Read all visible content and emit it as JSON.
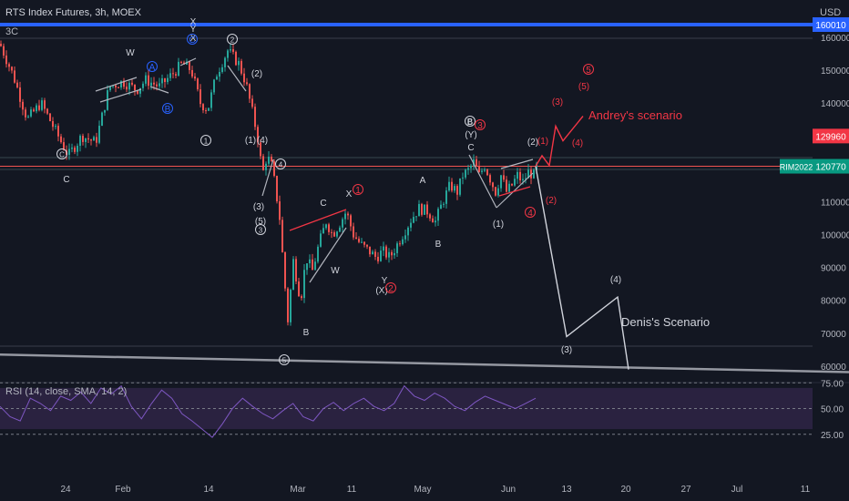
{
  "header": {
    "symbol_title": "RTS Index Futures, 3h, MOEX",
    "chart_label": "3C",
    "currency": "USD",
    "rsi_label": "RSI (14, close, SMA, 14, 2)"
  },
  "price_axis": {
    "ticks": [
      "160000",
      "150000",
      "140000",
      "130000",
      "120000",
      "110000",
      "100000",
      "90000",
      "80000",
      "70000",
      "60000"
    ],
    "top_tag": "160010",
    "tag_hi": "129960",
    "tag_cur": "120770",
    "tag_symbol": "RIM2022"
  },
  "time_axis": {
    "ticks": [
      "24",
      "Feb",
      "14",
      "Mar",
      "11",
      "May",
      "Jun",
      "13",
      "20",
      "27",
      "Jul",
      "11"
    ]
  },
  "rsi_axis": {
    "ticks": [
      "75.00",
      "50.00",
      "25.00"
    ]
  },
  "scenarios": {
    "andrey": "Andrey's scenario",
    "denis": "Denis's Scenario"
  },
  "waves_white": [
    "W",
    "X",
    "X",
    "Y",
    "C",
    "(2)",
    "(1)",
    "(4)",
    "(3)",
    "(5)",
    "B",
    "W",
    "C",
    "X",
    "(X)",
    "Y",
    "A",
    "B",
    "B",
    "(Y)",
    "C",
    "(2)",
    "(1)",
    "(3)",
    "(4)"
  ],
  "waves_blue": [
    "A",
    "B",
    "C"
  ],
  "waves_red": [
    "1",
    "2",
    "3",
    "(1)",
    "(2)",
    "(3)",
    "(4)",
    "(5)",
    "4",
    "5"
  ],
  "circled_white": [
    "C",
    "1",
    "2",
    "3",
    "4",
    "5",
    "B"
  ],
  "colors": {
    "background": "#131722",
    "up": "#26a69a",
    "down": "#ef5350",
    "rsi_line": "#7e57c2",
    "rsi_band": "#2a2240",
    "accent_blue": "#2962ff",
    "wave_red": "#f23645",
    "projection": "#d1d4dc",
    "current_tag": "#089981",
    "hi_tag": "#f23645"
  },
  "chart_data": {
    "type": "candlestick",
    "title": "RTS Index Futures, 3h, MOEX",
    "y_unit": "USD",
    "y_range": [
      55000,
      168000
    ],
    "current_price": 120770,
    "price_line_hi": 129960,
    "top_level": 160010,
    "price_path": [
      [
        0,
        158000
      ],
      [
        15,
        148000
      ],
      [
        30,
        135000
      ],
      [
        45,
        140000
      ],
      [
        60,
        132000
      ],
      [
        75,
        124000
      ],
      [
        90,
        130000
      ],
      [
        105,
        128000
      ],
      [
        120,
        145000
      ],
      [
        135,
        146500
      ],
      [
        150,
        144000
      ],
      [
        160,
        147000
      ],
      [
        175,
        145000
      ],
      [
        190,
        149000
      ],
      [
        200,
        152000
      ],
      [
        210,
        150000
      ],
      [
        220,
        140000
      ],
      [
        228,
        138000
      ],
      [
        238,
        149000
      ],
      [
        250,
        156000
      ],
      [
        262,
        152000
      ],
      [
        270,
        146000
      ],
      [
        278,
        136000
      ],
      [
        284,
        128000
      ],
      [
        288,
        118000
      ],
      [
        293,
        124000
      ],
      [
        298,
        121000
      ],
      [
        302,
        115000
      ],
      [
        307,
        105000
      ],
      [
        312,
        87000
      ],
      [
        316,
        74000
      ],
      [
        322,
        92000
      ],
      [
        330,
        80000
      ],
      [
        336,
        93000
      ],
      [
        343,
        89000
      ],
      [
        350,
        97000
      ],
      [
        358,
        104000
      ],
      [
        365,
        100000
      ],
      [
        372,
        103000
      ],
      [
        380,
        107000
      ],
      [
        388,
        100000
      ],
      [
        396,
        97000
      ],
      [
        405,
        95000
      ],
      [
        413,
        93000
      ],
      [
        420,
        95000
      ],
      [
        428,
        93000
      ],
      [
        436,
        97000
      ],
      [
        444,
        101000
      ],
      [
        452,
        105000
      ],
      [
        460,
        108000
      ],
      [
        470,
        107000
      ],
      [
        478,
        104000
      ],
      [
        486,
        110000
      ],
      [
        494,
        115000
      ],
      [
        502,
        113000
      ],
      [
        508,
        118000
      ],
      [
        514,
        119500
      ],
      [
        520,
        122000
      ],
      [
        526,
        118000
      ],
      [
        532,
        121000
      ],
      [
        538,
        117000
      ],
      [
        544,
        113000
      ],
      [
        550,
        118000
      ],
      [
        556,
        113000
      ],
      [
        562,
        115000
      ],
      [
        568,
        118000
      ],
      [
        574,
        116000
      ],
      [
        580,
        119000
      ],
      [
        586,
        118000
      ],
      [
        590,
        121500
      ]
    ],
    "rsi": [
      52,
      42,
      38,
      60,
      55,
      48,
      62,
      58,
      66,
      55,
      70,
      64,
      72,
      52,
      40,
      55,
      68,
      60,
      45,
      38,
      30,
      22,
      35,
      50,
      60,
      52,
      45,
      40,
      48,
      55,
      42,
      38,
      50,
      56,
      48,
      55,
      60,
      52,
      48,
      55,
      72,
      62,
      58,
      65,
      60,
      52,
      48,
      56,
      62,
      58,
      54,
      50,
      55,
      60
    ],
    "andrey_path": [
      [
        588,
        120770
      ],
      [
        595,
        124000
      ],
      [
        603,
        121000
      ],
      [
        610,
        133000
      ],
      [
        618,
        128500
      ],
      [
        640,
        136000
      ]
    ],
    "denis_path": [
      [
        588,
        120770
      ],
      [
        622,
        69000
      ],
      [
        678,
        81000
      ],
      [
        690,
        59000
      ]
    ],
    "support_line": [
      [
        0,
        63500
      ],
      [
        932,
        58200
      ]
    ],
    "rsi_levels": [
      75,
      50,
      25
    ]
  }
}
